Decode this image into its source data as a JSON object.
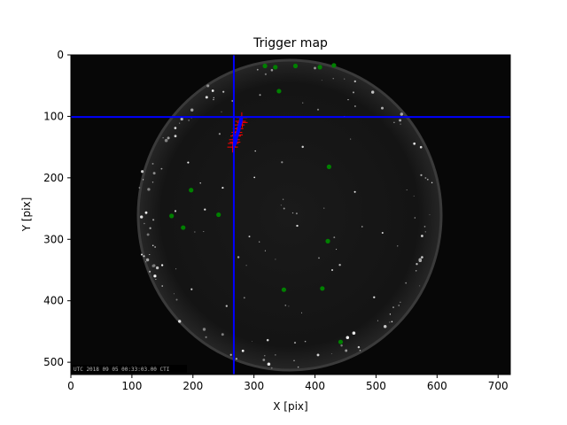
{
  "chart_data": {
    "type": "scatter",
    "title": "Trigger map",
    "xlabel": "X [pix]",
    "ylabel": "Y [pix]",
    "xlim": [
      0,
      720
    ],
    "ylim": [
      520,
      0
    ],
    "x_ticks": [
      "0",
      "100",
      "200",
      "300",
      "400",
      "500",
      "600",
      "700"
    ],
    "y_ticks": [
      "0",
      "100",
      "200",
      "300",
      "400",
      "500"
    ],
    "background_image": "all-sky camera frame: black background with grey circular fisheye field and bright star points",
    "timestamp_overlay": "UTC 2018 09 05 00:33:03.00 CTI",
    "crosshair": {
      "x": 267,
      "y": 101,
      "color": "#0000ff"
    },
    "series": [
      {
        "marker": "o",
        "color": "#008000",
        "points": [
          [
            318,
            18
          ],
          [
            335,
            20
          ],
          [
            368,
            18
          ],
          [
            408,
            20
          ],
          [
            431,
            17
          ],
          [
            341,
            59
          ],
          [
            423,
            182
          ],
          [
            197,
            220
          ],
          [
            165,
            262
          ],
          [
            242,
            260
          ],
          [
            184,
            281
          ],
          [
            421,
            303
          ],
          [
            349,
            382
          ],
          [
            412,
            380
          ],
          [
            442,
            467
          ]
        ]
      },
      {
        "marker": "+",
        "color": "#ff0000",
        "points": [
          [
            265,
            150
          ],
          [
            266,
            144
          ],
          [
            268,
            138
          ],
          [
            270,
            132
          ],
          [
            272,
            126
          ],
          [
            274,
            120
          ],
          [
            276,
            114
          ],
          [
            278,
            108
          ],
          [
            280,
            102
          ],
          [
            281,
            110
          ],
          [
            269,
            142
          ],
          [
            273,
            130
          ]
        ]
      },
      {
        "marker": "line",
        "color": "#0000ff",
        "points": [
          [
            268,
            146
          ],
          [
            270,
            140
          ],
          [
            271,
            134
          ],
          [
            273,
            128
          ],
          [
            275,
            122
          ],
          [
            276,
            116
          ],
          [
            278,
            110
          ],
          [
            279,
            104
          ]
        ]
      }
    ]
  }
}
